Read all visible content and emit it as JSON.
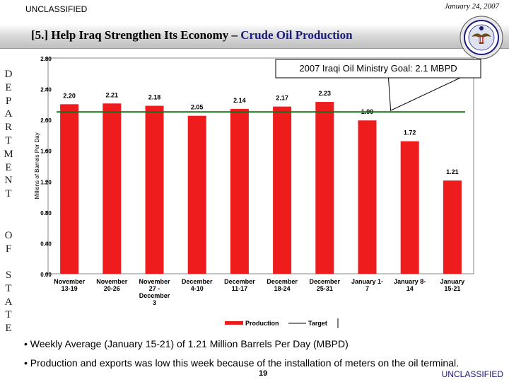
{
  "header": {
    "classification": "UNCLASSIFIED",
    "date": "January 24, 2007",
    "title_prefix": "[5.] Help Iraq Strengthen Its Economy – ",
    "title_accent": "Crude Oil Production"
  },
  "sidebar": {
    "letters": [
      "D",
      "E",
      "P",
      "A",
      "R",
      "T",
      "M",
      "E",
      "N",
      "T",
      "O",
      "F",
      "S",
      "T",
      "A",
      "T",
      "E"
    ]
  },
  "colors": {
    "bar": "#ee1c1c",
    "target_line": "#1e6b1e",
    "title_accent": "#1c1c7c"
  },
  "chart_data": {
    "type": "bar",
    "ylabel": "Millions of Barrels Per Day",
    "ylim": [
      0,
      2.8
    ],
    "yticks": [
      "0.00",
      "0.40",
      "0.80",
      "1.20",
      "1.60",
      "2.00",
      "2.40",
      "2.80"
    ],
    "categories": [
      "November 13-19",
      "November 20-26",
      "November 27-December 3",
      "December 4-10",
      "December 11-17",
      "December 18-24",
      "December 25-31",
      "January 1-7",
      "January 8-14",
      "January 15-21"
    ],
    "category_lines": [
      [
        "November",
        "13-19"
      ],
      [
        "November",
        "20-26"
      ],
      [
        "November",
        "27 -",
        "December",
        "3"
      ],
      [
        "December",
        "4-10"
      ],
      [
        "December",
        "11-17"
      ],
      [
        "December",
        "18-24"
      ],
      [
        "December",
        "25-31"
      ],
      [
        "January 1-",
        "7"
      ],
      [
        "January 8-",
        "14"
      ],
      [
        "January",
        "15-21"
      ]
    ],
    "series": [
      {
        "name": "Production",
        "values": [
          2.2,
          2.21,
          2.18,
          2.05,
          2.14,
          2.17,
          2.23,
          1.99,
          1.72,
          1.21
        ]
      },
      {
        "name": "Target",
        "values": [
          2.1,
          2.1,
          2.1,
          2.1,
          2.1,
          2.1,
          2.1,
          2.1,
          2.1,
          2.1
        ]
      }
    ],
    "data_labels": [
      "2.20",
      "2.21",
      "2.18",
      "2.05",
      "2.14",
      "2.17",
      "2.23",
      "1.99",
      "1.72",
      "1.21"
    ],
    "annotation": "2007 Iraqi Oil Ministry Goal:  2.1 MBPD",
    "legend": [
      "Production",
      "Target"
    ]
  },
  "bullets": [
    "• Weekly Average (January 15-21) of 1.21 Million Barrels Per Day (MBPD)",
    "• Production and exports was low this week because of the installation of meters on the oil terminal."
  ],
  "footer": {
    "page_number": "19",
    "classification": "UNCLASSIFIED"
  }
}
